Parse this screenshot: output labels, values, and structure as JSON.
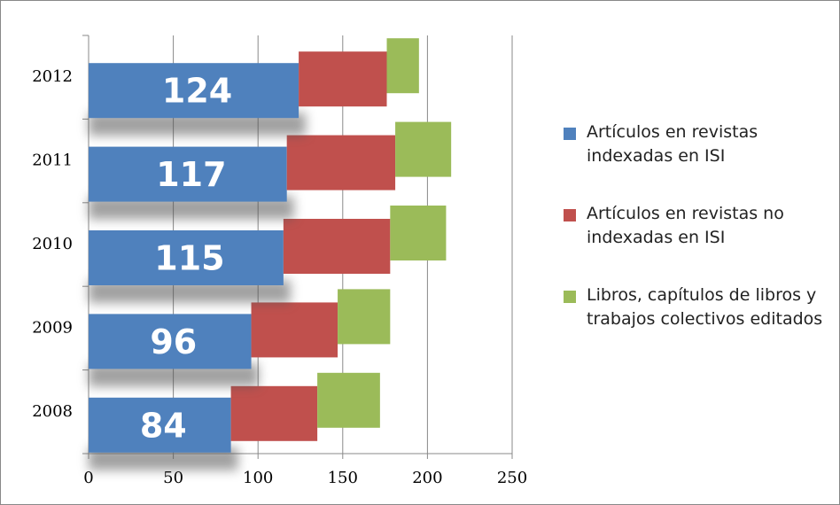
{
  "chart_data": {
    "type": "bar",
    "orientation": "horizontal",
    "stacked": true,
    "categories": [
      "2008",
      "2009",
      "2010",
      "2011",
      "2012"
    ],
    "series": [
      {
        "name": "Artículos en revistas indexadas en ISI",
        "color": "#4f81bd",
        "values": [
          84,
          96,
          115,
          117,
          124
        ]
      },
      {
        "name": "Artículos en revistas no indexadas en ISI",
        "color": "#c0504d",
        "values": [
          51,
          51,
          63,
          64,
          52
        ]
      },
      {
        "name": "Libros, capítulos de libros y trabajos colectivos editados",
        "color": "#9bbb59",
        "values": [
          37,
          31,
          33,
          33,
          19
        ]
      }
    ],
    "xlim": [
      0,
      250
    ],
    "xticks": [
      0,
      50,
      100,
      150,
      200,
      250
    ],
    "grid": true
  }
}
